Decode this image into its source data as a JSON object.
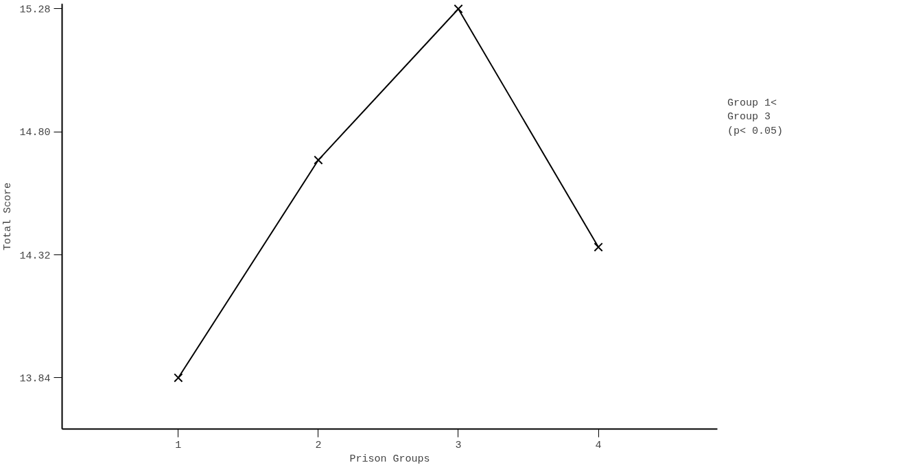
{
  "chart_data": {
    "type": "line",
    "xlabel": "Prison Groups",
    "ylabel": "Total Score",
    "x": [
      1,
      2,
      3,
      4
    ],
    "series": [
      {
        "color": "#000000",
        "values": [
          13.84,
          14.69,
          15.28,
          14.35
        ]
      }
    ],
    "xlim": [
      0.17,
      4.85
    ],
    "xticks": [
      1,
      2,
      3,
      4
    ],
    "ylim": [
      13.64,
      15.3
    ],
    "yticks": [
      13.84,
      14.32,
      {
        "value": 14.8,
        "label": "14.80"
      },
      15.28
    ],
    "marker": "cross",
    "line_style": "solid",
    "annotations": [
      "Group 1<\nGroup 3\n(p< 0.05)"
    ]
  }
}
